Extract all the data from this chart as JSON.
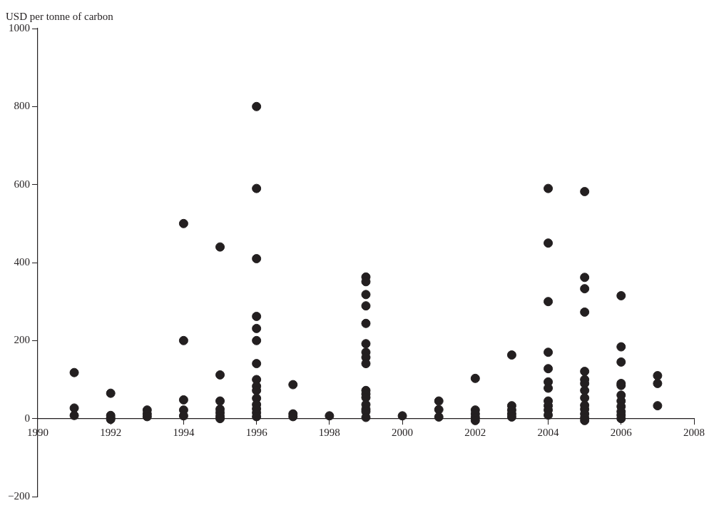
{
  "chart_data": {
    "type": "scatter",
    "ylabel": "USD per tonne of carbon",
    "marker": "circle",
    "grid": false,
    "xlim": [
      1990,
      2008
    ],
    "xticks": [
      1990,
      1992,
      1994,
      1996,
      1998,
      2000,
      2002,
      2004,
      2006,
      2008
    ],
    "ylim": [
      -200,
      1000
    ],
    "yticks": [
      -200,
      0,
      200,
      400,
      600,
      800,
      1000
    ],
    "series": [
      {
        "color": "#231f20",
        "x": [
          1991,
          1991,
          1991,
          1992,
          1992,
          1992,
          1992,
          1993,
          1993,
          1993,
          1994,
          1994,
          1994,
          1994,
          1994,
          1995,
          1995,
          1995,
          1995,
          1995,
          1995,
          1995,
          1996,
          1996,
          1996,
          1996,
          1996,
          1996,
          1996,
          1996,
          1996,
          1996,
          1996,
          1996,
          1996,
          1996,
          1996,
          1997,
          1997,
          1997,
          1998,
          1999,
          1999,
          1999,
          1999,
          1999,
          1999,
          1999,
          1999,
          1999,
          1999,
          1999,
          1999,
          1999,
          1999,
          1999,
          1999,
          2000,
          2001,
          2001,
          2001,
          2002,
          2002,
          2002,
          2002,
          2002,
          2003,
          2003,
          2003,
          2003,
          2003,
          2004,
          2004,
          2004,
          2004,
          2004,
          2004,
          2004,
          2004,
          2004,
          2004,
          2004,
          2005,
          2005,
          2005,
          2005,
          2005,
          2005,
          2005,
          2005,
          2005,
          2005,
          2005,
          2005,
          2005,
          2005,
          2006,
          2006,
          2006,
          2006,
          2006,
          2006,
          2006,
          2006,
          2006,
          2006,
          2006,
          2007,
          2007,
          2007
        ],
        "values": [
          118,
          27,
          8,
          65,
          8,
          2,
          -2,
          22,
          12,
          5,
          500,
          200,
          48,
          22,
          7,
          440,
          112,
          45,
          24,
          15,
          6,
          0,
          800,
          590,
          410,
          262,
          231,
          200,
          141,
          100,
          83,
          72,
          52,
          36,
          25,
          15,
          5,
          87,
          12,
          5,
          7,
          363,
          351,
          318,
          289,
          244,
          192,
          170,
          157,
          141,
          72,
          63,
          54,
          36,
          24,
          18,
          3,
          7,
          45,
          23,
          4,
          103,
          22,
          12,
          3,
          -5,
          163,
          33,
          22,
          12,
          4,
          590,
          450,
          300,
          170,
          128,
          94,
          78,
          45,
          33,
          22,
          9,
          582,
          362,
          333,
          273,
          121,
          100,
          90,
          72,
          53,
          34,
          24,
          12,
          2,
          -5,
          315,
          184,
          145,
          90,
          85,
          60,
          45,
          31,
          18,
          9,
          0,
          110,
          90,
          33
        ]
      }
    ]
  }
}
